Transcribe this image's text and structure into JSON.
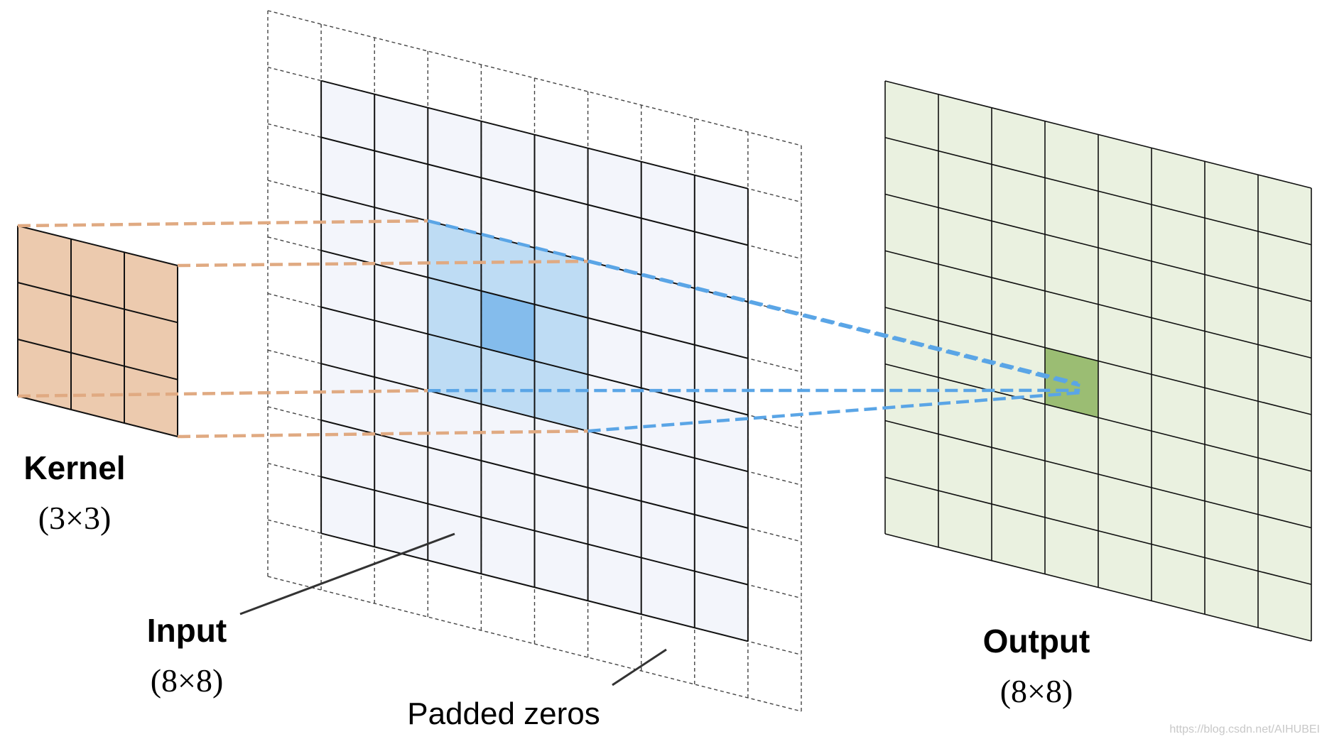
{
  "diagram": {
    "kernel": {
      "title": "Kernel",
      "size": "(3×3)",
      "rows": 3,
      "cols": 3
    },
    "input": {
      "title": "Input",
      "size": "(8×8)",
      "rows": 8,
      "cols": 8,
      "padding": 1,
      "kernel_window": {
        "row": 2,
        "col": 2,
        "size": 3
      }
    },
    "output": {
      "title": "Output",
      "size": "(8×8)",
      "rows": 8,
      "cols": 8,
      "highlight_cell": {
        "row": 4,
        "col": 3
      }
    },
    "padding_label": "Padded zeros",
    "watermark": "https://blog.csdn.net/AIHUBEI",
    "colors": {
      "kernel_fill": "#eccaae",
      "kernel_connector": "#e0aa82",
      "input_fill": "#f3f5fb",
      "window_fill": "#bedcf4",
      "window_center": "#84bcec",
      "projection": "#5aa5e6",
      "output_fill": "#eaf1e0",
      "output_highlight": "#9bbd73",
      "grid": "#111111"
    }
  }
}
